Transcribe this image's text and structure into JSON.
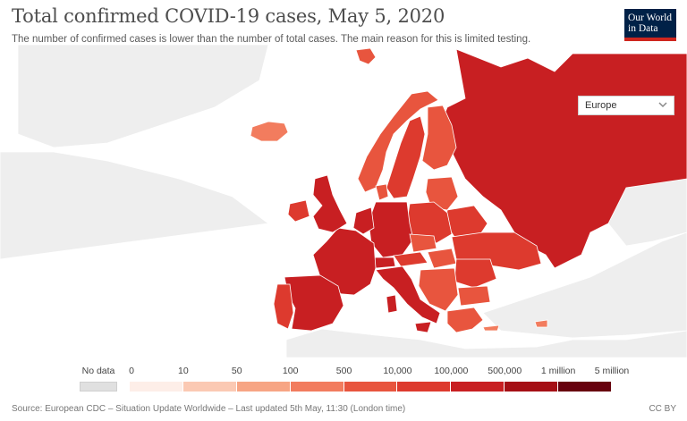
{
  "title": "Total confirmed COVID-19 cases, May 5, 2020",
  "subtitle": "The number of confirmed cases is lower than the number of total cases. The main reason for this is limited testing.",
  "logo": {
    "line1": "Our World",
    "line2": "in Data"
  },
  "region_select": {
    "value": "Europe",
    "icon": "chevron-down-icon"
  },
  "legend": {
    "no_data_label": "No data",
    "no_data_color": "#e0e0e0",
    "ticks": [
      "0",
      "10",
      "50",
      "100",
      "500",
      "10,000",
      "100,000",
      "500,000",
      "1 million",
      "5 million"
    ],
    "colors": [
      "#fdeee8",
      "#fbc9b3",
      "#f7a584",
      "#f27c5e",
      "#e8553e",
      "#dd3a2e",
      "#c81f22",
      "#a50f15",
      "#67000d"
    ]
  },
  "footer": {
    "source": "Source: European CDC – Situation Update Worldwide – Last updated 5th May, 11:30 (London time)",
    "license": "CC BY"
  },
  "colors": {
    "border": "#ffffff",
    "background": "#ffffff",
    "no_data": "#ececec",
    "ocean": "#ffffff"
  }
}
